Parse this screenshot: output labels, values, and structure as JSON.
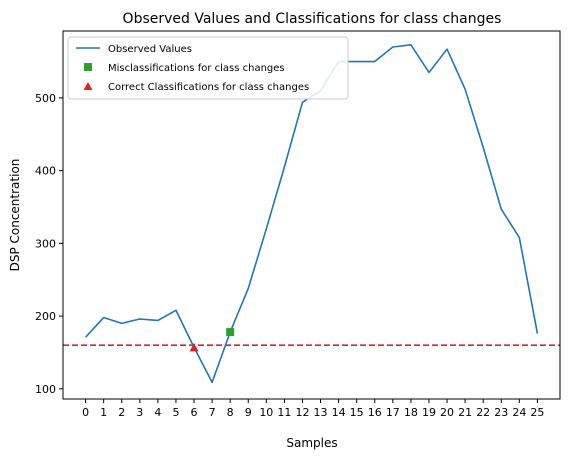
{
  "chart_data": {
    "type": "line",
    "title": "Observed Values and Classifications for class changes",
    "xlabel": "Samples",
    "ylabel": "DSP Concentration",
    "x": [
      0,
      1,
      2,
      3,
      4,
      5,
      6,
      7,
      8,
      9,
      10,
      11,
      12,
      13,
      14,
      15,
      16,
      17,
      18,
      19,
      20,
      21,
      22,
      23,
      24,
      25
    ],
    "xlim": [
      -1.25,
      26.25
    ],
    "ylim": [
      86,
      592
    ],
    "yticks": [
      100,
      200,
      300,
      400,
      500
    ],
    "grid": false,
    "legend_position": "top-left",
    "series": [
      {
        "name": "Observed Values",
        "kind": "line",
        "color": "#1f77b4",
        "x": [
          0,
          1,
          2,
          3,
          4,
          5,
          6,
          7,
          8,
          9,
          10,
          11,
          12,
          13,
          14,
          15,
          16,
          17,
          18,
          19,
          20,
          21,
          22,
          23,
          24,
          25
        ],
        "values": [
          171,
          198,
          190,
          196,
          194,
          208,
          157,
          109,
          178,
          238,
          320,
          405,
          494,
          510,
          550,
          550,
          550,
          570,
          573,
          535,
          567,
          512,
          432,
          347,
          308,
          176
        ]
      },
      {
        "name": "Misclassifications for class changes",
        "kind": "marker-square",
        "color": "#2ca02c",
        "points": [
          {
            "x": 8,
            "y": 178
          }
        ]
      },
      {
        "name": "Correct Classifications for class changes",
        "kind": "marker-triangle",
        "color": "#d62728",
        "points": [
          {
            "x": 6,
            "y": 157
          }
        ]
      }
    ],
    "reference_line": {
      "y": 160,
      "color": "#d62728",
      "style": "dashed"
    }
  }
}
